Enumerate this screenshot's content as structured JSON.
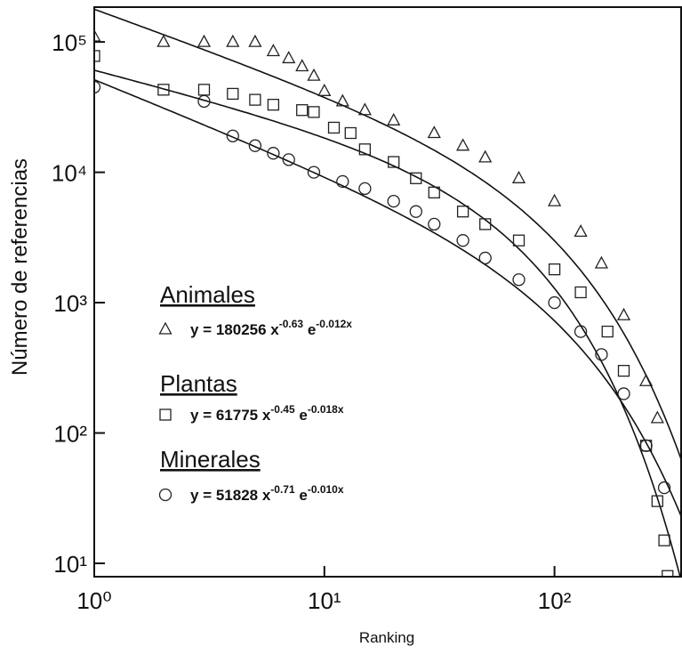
{
  "chart_data": {
    "type": "scatter",
    "x_label": "Ranking",
    "y_label": "Número de referencias",
    "xscale": "log",
    "yscale": "log",
    "xlim": [
      1,
      355
    ],
    "ylim": [
      7.9,
      185000
    ],
    "xticks": [
      {
        "value": 1,
        "label": "10⁰"
      },
      {
        "value": 10,
        "label": "10¹"
      },
      {
        "value": 100,
        "label": "10²"
      }
    ],
    "yticks": [
      {
        "value": 10,
        "label": "10¹"
      },
      {
        "value": 100,
        "label": "10²"
      },
      {
        "value": 1000,
        "label": "10³"
      },
      {
        "value": 10000,
        "label": "10⁴"
      },
      {
        "value": 100000,
        "label": "10⁵"
      }
    ],
    "series": [
      {
        "name": "Animales",
        "marker": "triangle",
        "color": "#222",
        "x": [
          1,
          2,
          3,
          4,
          5,
          6,
          7,
          8,
          9,
          10,
          12,
          15,
          20,
          30,
          40,
          50,
          70,
          100,
          130,
          160,
          200,
          250,
          280
        ],
        "values": [
          110000,
          100000,
          100000,
          100000,
          100000,
          85000,
          75000,
          65000,
          55000,
          42000,
          35000,
          30000,
          25000,
          20000,
          16000,
          13000,
          9000,
          6000,
          3500,
          2000,
          800,
          250,
          130
        ],
        "fit": {
          "a": 180256,
          "b": -0.63,
          "c": -0.012
        },
        "equation": [
          "y = 180256 x",
          "-0.63",
          " e",
          "-0.012x"
        ]
      },
      {
        "name": "Plantas",
        "marker": "square",
        "color": "#222",
        "x": [
          1,
          2,
          3,
          4,
          5,
          6,
          8,
          9,
          11,
          13,
          15,
          20,
          25,
          30,
          40,
          50,
          70,
          100,
          130,
          170,
          200,
          250,
          280,
          300,
          310
        ],
        "values": [
          78000,
          43000,
          43000,
          40000,
          36000,
          33000,
          30000,
          29000,
          22000,
          20000,
          15000,
          12000,
          9000,
          7000,
          5000,
          4000,
          3000,
          1800,
          1200,
          600,
          300,
          80,
          30,
          15,
          8
        ],
        "fit": {
          "a": 61775,
          "b": -0.45,
          "c": -0.018
        },
        "equation": [
          "y = 61775 x",
          "-0.45",
          " e",
          "-0.018x"
        ]
      },
      {
        "name": "Minerales",
        "marker": "circle",
        "color": "#222",
        "x": [
          1,
          3,
          4,
          5,
          6,
          7,
          9,
          12,
          15,
          20,
          25,
          30,
          40,
          50,
          70,
          100,
          130,
          160,
          200,
          250,
          300
        ],
        "values": [
          45000,
          35000,
          19000,
          16000,
          14000,
          12500,
          10000,
          8500,
          7500,
          6000,
          5000,
          4000,
          3000,
          2200,
          1500,
          1000,
          600,
          400,
          200,
          80,
          38
        ],
        "fit": {
          "a": 51828,
          "b": -0.71,
          "c": -0.01
        },
        "equation": [
          "y = 51828 x",
          "-0.71",
          " e",
          "-0.010x"
        ]
      }
    ]
  }
}
